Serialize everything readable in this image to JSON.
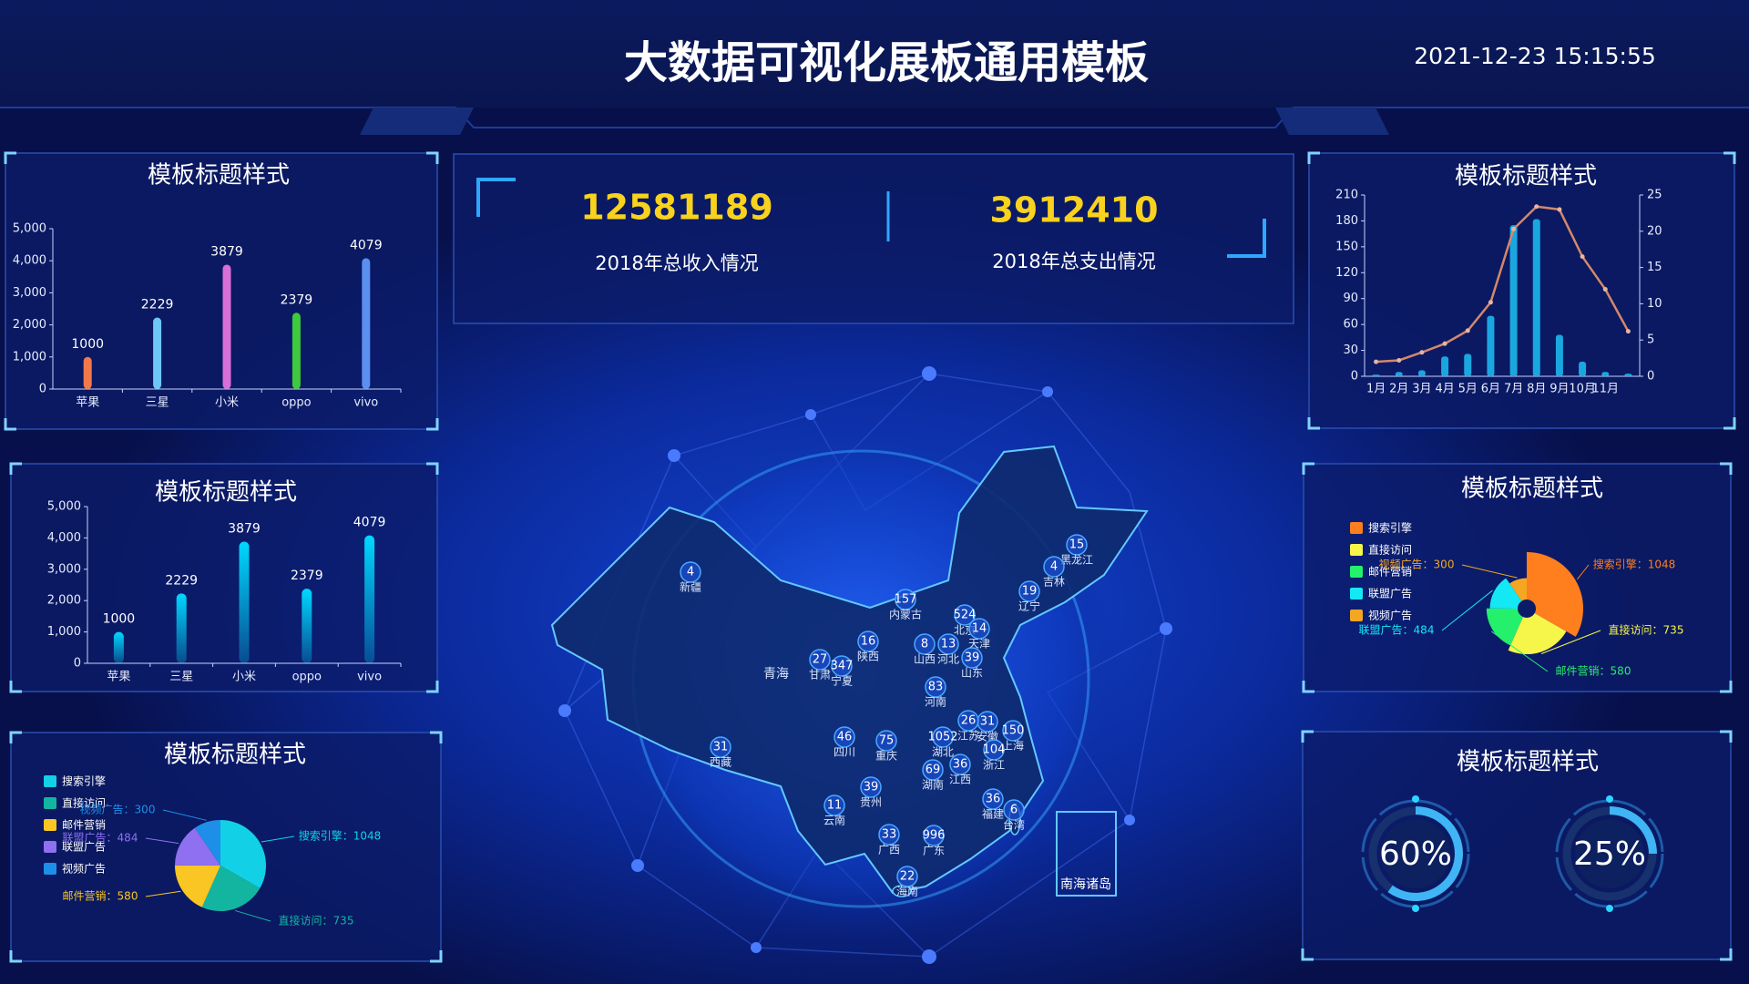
{
  "header": {
    "title": "大数据可视化展板通用模板",
    "datetime": "2021-12-23 15:15:55"
  },
  "stats": [
    {
      "value": 12581189,
      "label": "2018年总收入情况"
    },
    {
      "value": 3912410,
      "label": "2018年总支出情况"
    }
  ],
  "map": {
    "inset_label": "南海诸岛",
    "regions": [
      {
        "name": "新疆",
        "value": 4
      },
      {
        "name": "西藏",
        "value": 31
      },
      {
        "name": "青海"
      },
      {
        "name": "黑龙江",
        "value": 15
      },
      {
        "name": "吉林",
        "value": 4
      },
      {
        "name": "辽宁",
        "value": 19
      },
      {
        "name": "内蒙古",
        "value": 157
      },
      {
        "name": "北京",
        "value": 524
      },
      {
        "name": "天津",
        "value": 14
      },
      {
        "name": "河北",
        "value": 13
      },
      {
        "name": "山西",
        "value": 8
      },
      {
        "name": "山东",
        "value": 39
      },
      {
        "name": "河南",
        "value": 83
      },
      {
        "name": "陕西",
        "value": 16
      },
      {
        "name": "甘肃",
        "value": 27
      },
      {
        "name": "宁夏",
        "value": 347
      },
      {
        "name": "四川",
        "value": 46
      },
      {
        "name": "重庆",
        "value": 75
      },
      {
        "name": "湖北",
        "value": 1052
      },
      {
        "name": "安徽",
        "value": 31
      },
      {
        "name": "江苏",
        "value": 26
      },
      {
        "name": "上海",
        "value": 150
      },
      {
        "name": "浙江",
        "value": 104
      },
      {
        "name": "江西",
        "value": 36
      },
      {
        "name": "湖南",
        "value": 69
      },
      {
        "name": "贵州",
        "value": 39
      },
      {
        "name": "云南",
        "value": 11
      },
      {
        "name": "广西",
        "value": 33
      },
      {
        "name": "广东",
        "value": 996
      },
      {
        "name": "福建",
        "value": 36
      },
      {
        "name": "台湾",
        "value": 6
      },
      {
        "name": "海南",
        "value": 22
      }
    ]
  },
  "chart_data": [
    {
      "type": "bar",
      "title": "模板标题样式",
      "categories": [
        "苹果",
        "三星",
        "小米",
        "oppo",
        "vivo"
      ],
      "values": [
        1000,
        2229,
        3879,
        2379,
        4079
      ],
      "colors": [
        "#f2784b",
        "#6ec6f5",
        "#d86fd8",
        "#3ec93e",
        "#5b8ff0"
      ],
      "ylim": [
        0,
        5000
      ],
      "yticks": [
        0,
        {
          "value": 1000,
          "label": "1,000"
        },
        {
          "value": 2000,
          "label": "2,000"
        },
        {
          "value": 3000,
          "label": "3,000"
        },
        {
          "value": 4000,
          "label": "4,000"
        },
        {
          "value": 5000,
          "label": "5,000"
        }
      ]
    },
    {
      "type": "bar",
      "title": "模板标题样式",
      "categories": [
        "苹果",
        "三星",
        "小米",
        "oppo",
        "vivo"
      ],
      "values": [
        1000,
        2229,
        3879,
        2379,
        4079
      ],
      "color": "#00d8ff",
      "ylim": [
        0,
        5000
      ],
      "yticks": [
        0,
        {
          "value": 1000,
          "label": "1,000"
        },
        {
          "value": 2000,
          "label": "2,000"
        },
        {
          "value": 3000,
          "label": "3,000"
        },
        {
          "value": 4000,
          "label": "4,000"
        },
        {
          "value": 5000,
          "label": "5,000"
        }
      ]
    },
    {
      "type": "pie",
      "title": "模板标题样式",
      "categories": [
        "搜索引擎",
        "直接访问",
        "邮件营销",
        "联盟广告",
        "视频广告"
      ],
      "values": [
        1048,
        735,
        580,
        484,
        300
      ],
      "value_labels": [
        "搜索引擎：1048",
        "直接访问：735",
        "邮件营销：580",
        "联盟广告：484",
        "视频广告：300"
      ],
      "colors": [
        "#12d1e6",
        "#13b5a1",
        "#f9c623",
        "#8f70f0",
        "#1e8fe8"
      ]
    },
    {
      "type": "combo",
      "title": "模板标题样式",
      "categories": [
        "1月",
        "2月",
        "3月",
        "4月",
        "5月",
        "6月",
        "7月",
        "8月",
        "9月",
        "10月",
        "11月",
        null
      ],
      "series": [
        {
          "type": "bar",
          "color": "#1aa7e0",
          "values": [
            2,
            5,
            7,
            23,
            26,
            70,
            175,
            182,
            48,
            17,
            5,
            3
          ]
        },
        {
          "type": "line",
          "color": "#d4876a",
          "axis": "y2",
          "values": [
            2.0,
            2.2,
            3.3,
            4.5,
            6.3,
            10.2,
            20.3,
            23.4,
            23.0,
            16.5,
            12.0,
            6.2
          ]
        }
      ],
      "ylim": [
        0,
        210
      ],
      "yticks": [
        0,
        30,
        60,
        90,
        120,
        150,
        180,
        210
      ],
      "y2lim": [
        0,
        25
      ],
      "y2ticks": [
        0,
        5,
        10,
        15,
        20,
        25
      ]
    },
    {
      "type": "rose",
      "title": "模板标题样式",
      "categories": [
        "搜索引擎",
        "直接访问",
        "邮件营销",
        "联盟广告",
        "视频广告"
      ],
      "values": [
        1048,
        735,
        580,
        484,
        300
      ],
      "value_labels": [
        "搜索引擎：1048",
        "直接访问：735",
        "邮件营销：580",
        "联盟广告：484",
        "视频广告：300"
      ],
      "colors": [
        "#ff7f1e",
        "#f6f54a",
        "#24f06b",
        "#14e8f4",
        "#f5a623"
      ]
    },
    {
      "type": "gauge",
      "title": "模板标题样式",
      "values": [
        60,
        25
      ],
      "value_labels": [
        "60%",
        "25%"
      ],
      "color": "#3fb5f5"
    }
  ]
}
